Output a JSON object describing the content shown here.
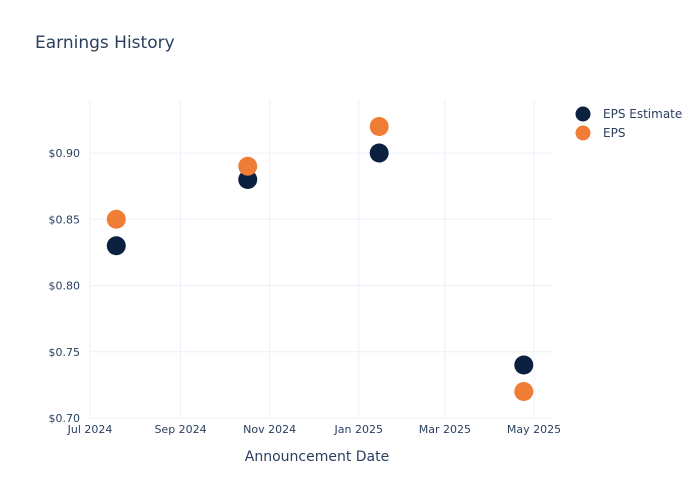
{
  "chart_data": {
    "type": "scatter",
    "title": "Earnings History",
    "xlabel": "Announcement Date",
    "ylabel": "",
    "x_ticks": [
      "Jul 2024",
      "Sep 2024",
      "Nov 2024",
      "Jan 2025",
      "Mar 2025",
      "May 2025"
    ],
    "y_ticks": [
      "$0.70",
      "$0.75",
      "$0.80",
      "$0.85",
      "$0.90"
    ],
    "ylim": [
      0.7,
      0.94
    ],
    "xlim": [
      "2024-07-01",
      "2025-05-14"
    ],
    "grid": true,
    "legend_position": "top-right",
    "x": [
      "2024-07-19",
      "2024-10-17",
      "2025-01-15",
      "2025-04-24"
    ],
    "series": [
      {
        "name": "EPS Estimate",
        "color": "#0b1f3f",
        "values": [
          0.83,
          0.88,
          0.9,
          0.74
        ]
      },
      {
        "name": "EPS",
        "color": "#f07d35",
        "values": [
          0.85,
          0.89,
          0.92,
          0.72
        ]
      }
    ]
  }
}
